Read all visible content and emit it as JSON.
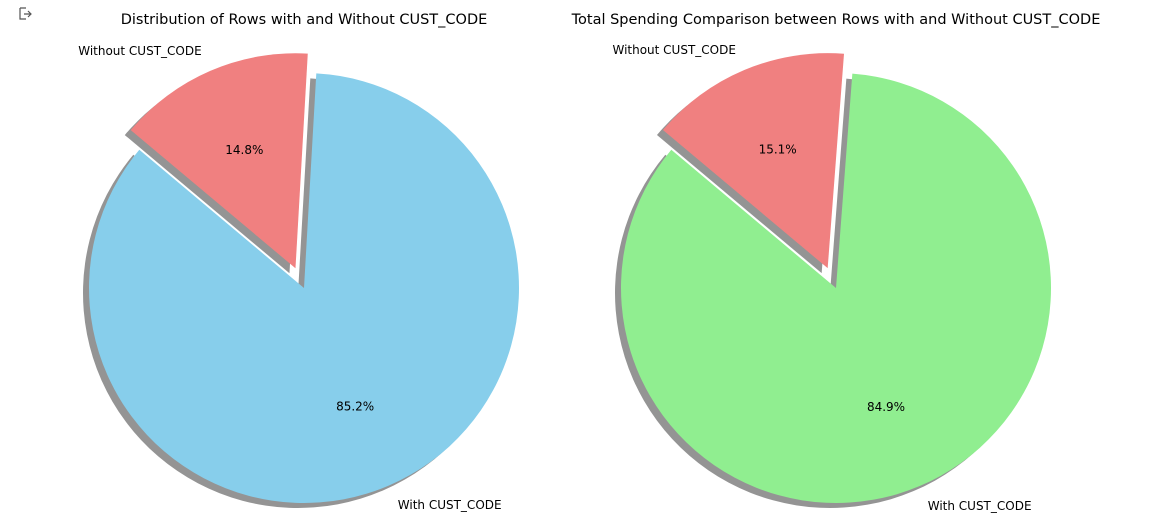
{
  "chart_data": [
    {
      "type": "pie",
      "title": "Distribution of Rows with and Without CUST_CODE",
      "labels": [
        "With CUST_CODE",
        "Without CUST_CODE"
      ],
      "values": [
        85.2,
        14.8
      ],
      "autopct": [
        "85.2%",
        "14.8%"
      ],
      "colors": [
        "#87CEEB",
        "#F08080"
      ],
      "explode": [
        0,
        0.1
      ],
      "shadow": true,
      "start_angle": 140
    },
    {
      "type": "pie",
      "title": "Total Spending Comparison between Rows with and Without CUST_CODE",
      "labels": [
        "With CUST_CODE",
        "Without CUST_CODE"
      ],
      "values": [
        84.9,
        15.1
      ],
      "autopct": [
        "84.9%",
        "15.1%"
      ],
      "colors": [
        "#90EE90",
        "#F08080"
      ],
      "explode": [
        0,
        0.1
      ],
      "shadow": true,
      "start_angle": 140
    }
  ],
  "ui": {
    "output_icon": "output-arrow-icon"
  }
}
